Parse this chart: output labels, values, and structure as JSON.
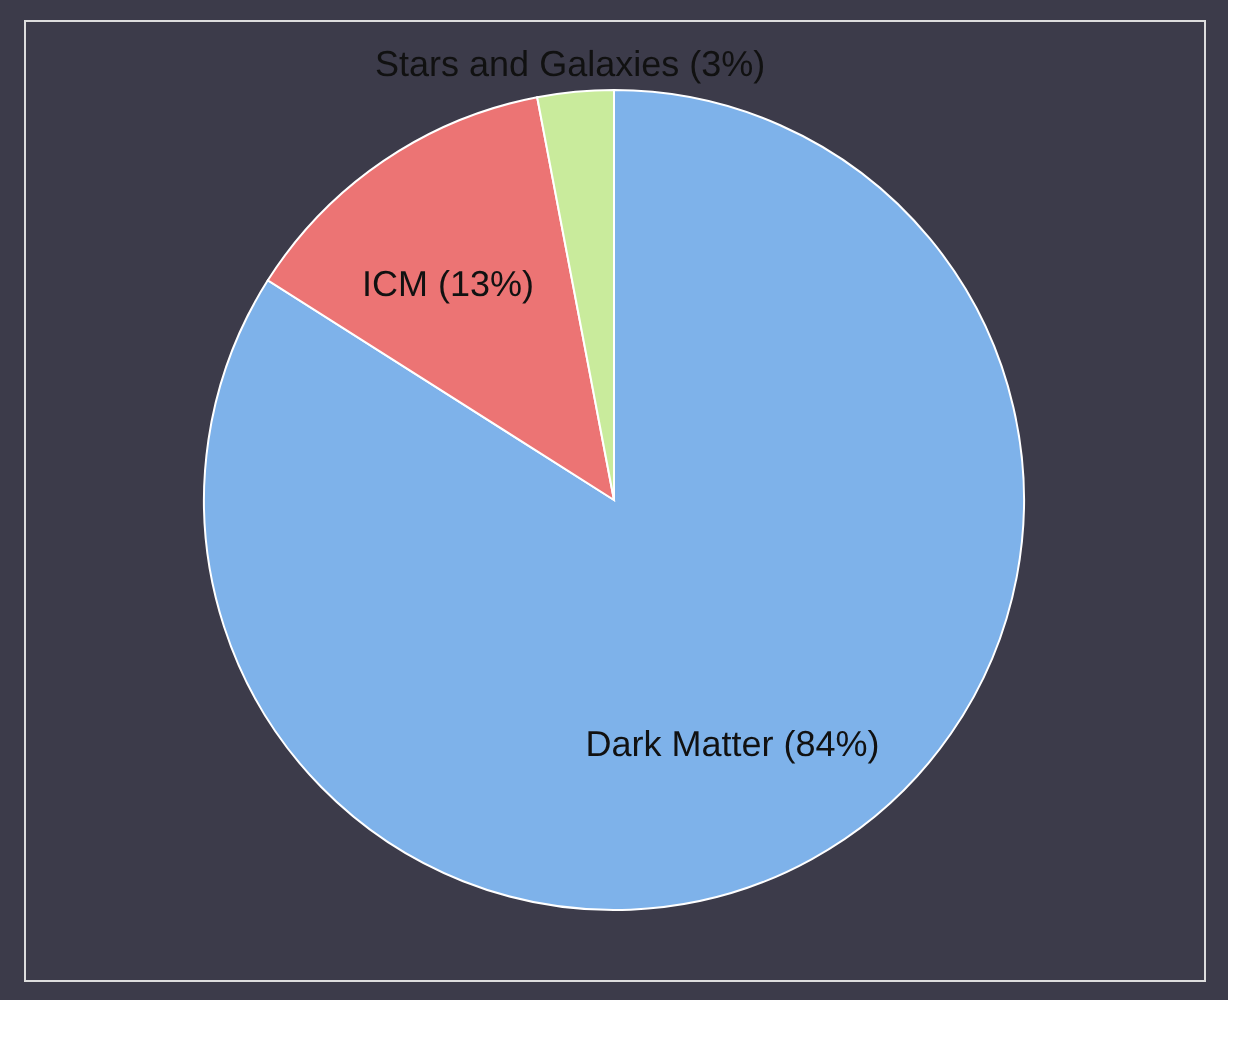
{
  "chart_data": {
    "type": "pie",
    "categories": [
      "Dark Matter (84%)",
      "ICM (13%)",
      "Stars and Galaxies (3%)"
    ],
    "values": [
      84,
      13,
      3
    ],
    "colors": [
      "#7eb2ea",
      "#ec7474",
      "#c9eb9c"
    ],
    "legend": false
  }
}
